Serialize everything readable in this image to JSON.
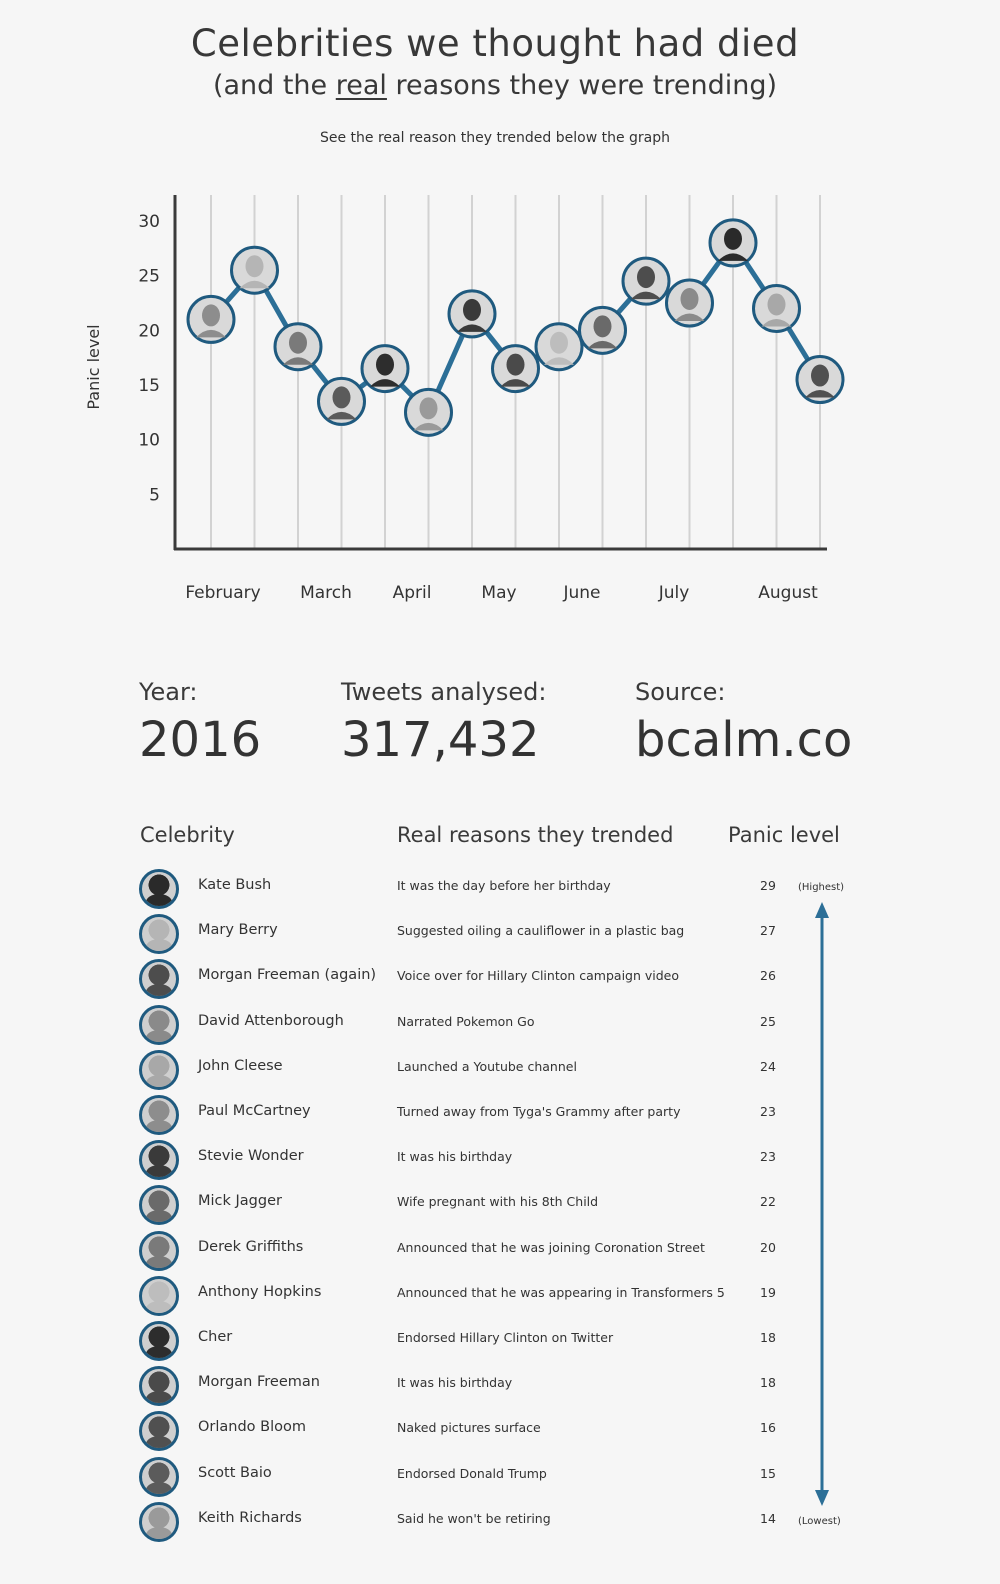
{
  "header": {
    "title": "Celebrities we thought had died",
    "subtitle_pre": "(and the",
    "subtitle_emph": "real",
    "subtitle_post": "reasons they were trending)",
    "caption": "See the real reason they trended below the graph"
  },
  "chart_data": {
    "type": "line",
    "ylabel": "Panic level",
    "xlabel": "",
    "ylim": [
      0,
      31
    ],
    "yticks": [
      5,
      10,
      15,
      20,
      25,
      30
    ],
    "month_labels": [
      "February",
      "March",
      "April",
      "May",
      "June",
      "July",
      "August"
    ],
    "grid": "vertical",
    "points": [
      {
        "x": 1,
        "y": 21,
        "shade": "#8d8d8d"
      },
      {
        "x": 2,
        "y": 25.5,
        "shade": "#b5b5b5"
      },
      {
        "x": 3,
        "y": 18.5,
        "shade": "#7a7a7a"
      },
      {
        "x": 4,
        "y": 13.5,
        "shade": "#5b5b5b"
      },
      {
        "x": 5,
        "y": 16.5,
        "shade": "#2d2d2d"
      },
      {
        "x": 6,
        "y": 12.5,
        "shade": "#9a9a9a"
      },
      {
        "x": 7,
        "y": 21.5,
        "shade": "#3a3a3a"
      },
      {
        "x": 8,
        "y": 16.5,
        "shade": "#4a4a4a"
      },
      {
        "x": 9,
        "y": 18.5,
        "shade": "#bdbdbd"
      },
      {
        "x": 10,
        "y": 20,
        "shade": "#6a6a6a"
      },
      {
        "x": 11,
        "y": 24.5,
        "shade": "#4d4d4d"
      },
      {
        "x": 12,
        "y": 22.5,
        "shade": "#8a8a8a"
      },
      {
        "x": 13,
        "y": 28,
        "shade": "#2a2a2a"
      },
      {
        "x": 14,
        "y": 22,
        "shade": "#a8a8a8"
      },
      {
        "x": 15,
        "y": 15.5,
        "shade": "#505050"
      }
    ],
    "colors": {
      "line": "#2c6f97",
      "marker_border": "#1f5a7f",
      "grid": "#d2d2d2",
      "axis": "#3a3a3a"
    }
  },
  "stats": [
    {
      "label": "Year:",
      "value": "2016"
    },
    {
      "label": "Tweets analysed:",
      "value": "317,432"
    },
    {
      "label": "Source:",
      "value": "bcalm.co"
    }
  ],
  "table": {
    "headers": {
      "celebrity": "Celebrity",
      "reason": "Real reasons they trended",
      "panic": "Panic level"
    },
    "highest_label": "(Highest)",
    "lowest_label": "(Lowest)",
    "rows": [
      {
        "name": "Kate Bush",
        "reason": "It was the day before her birthday",
        "panic": "29",
        "shade": "#2a2a2a"
      },
      {
        "name": "Mary Berry",
        "reason": "Suggested oiling a cauliflower in a plastic bag",
        "panic": "27",
        "shade": "#b5b5b5"
      },
      {
        "name": "Morgan Freeman (again)",
        "reason": "Voice over for Hillary Clinton campaign video",
        "panic": "26",
        "shade": "#4d4d4d"
      },
      {
        "name": "David Attenborough",
        "reason": "Narrated Pokemon Go",
        "panic": "25",
        "shade": "#8a8a8a"
      },
      {
        "name": "John Cleese",
        "reason": "Launched a Youtube channel",
        "panic": "24",
        "shade": "#a8a8a8"
      },
      {
        "name": "Paul McCartney",
        "reason": "Turned away from Tyga's Grammy after party",
        "panic": "23",
        "shade": "#8d8d8d"
      },
      {
        "name": "Stevie Wonder",
        "reason": "It was his birthday",
        "panic": "23",
        "shade": "#3a3a3a"
      },
      {
        "name": "Mick Jagger",
        "reason": "Wife pregnant with his 8th Child",
        "panic": "22",
        "shade": "#6a6a6a"
      },
      {
        "name": "Derek Griffiths",
        "reason": "Announced that he was joining Coronation Street",
        "panic": "20",
        "shade": "#7a7a7a"
      },
      {
        "name": "Anthony Hopkins",
        "reason": "Announced that he was appearing in Transformers 5",
        "panic": "19",
        "shade": "#bdbdbd"
      },
      {
        "name": "Cher",
        "reason": "Endorsed Hillary Clinton on Twitter",
        "panic": "18",
        "shade": "#2d2d2d"
      },
      {
        "name": "Morgan Freeman",
        "reason": "It was his birthday",
        "panic": "18",
        "shade": "#4a4a4a"
      },
      {
        "name": "Orlando Bloom",
        "reason": "Naked pictures surface",
        "panic": "16",
        "shade": "#505050"
      },
      {
        "name": "Scott Baio",
        "reason": "Endorsed Donald Trump",
        "panic": "15",
        "shade": "#5b5b5b"
      },
      {
        "name": "Keith Richards",
        "reason": "Said he won't be retiring",
        "panic": "14",
        "shade": "#9a9a9a"
      }
    ]
  }
}
